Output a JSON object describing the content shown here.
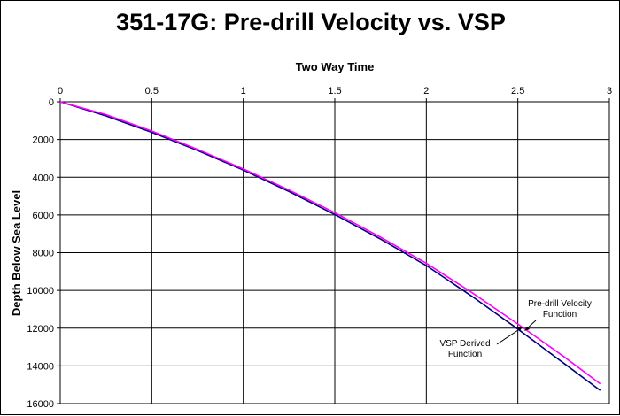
{
  "chart_data": {
    "type": "line",
    "title": "351-17G: Pre-drill Velocity vs. VSP",
    "xlabel": "Two Way Time",
    "ylabel": "Depth Below Sea Level",
    "xlim": [
      0,
      3
    ],
    "ylim": [
      0,
      16000
    ],
    "y_inverted": true,
    "x_axis_position": "top",
    "grid": true,
    "x_ticks": [
      "0",
      "0.5",
      "1",
      "1.5",
      "2",
      "2.5",
      "3"
    ],
    "y_ticks": [
      "0",
      "2000",
      "4000",
      "6000",
      "8000",
      "10000",
      "12000",
      "14000",
      "16000"
    ],
    "series": [
      {
        "name": "VSP Derived Function",
        "color": "#000080",
        "x": [
          0,
          0.25,
          0.5,
          0.75,
          1.0,
          1.25,
          1.5,
          1.75,
          2.0,
          2.25,
          2.5,
          2.75,
          2.95
        ],
        "y": [
          0,
          750,
          1620,
          2580,
          3620,
          4760,
          5980,
          7280,
          8680,
          10320,
          12050,
          13850,
          15300
        ]
      },
      {
        "name": "Pre-drill Velocity Function",
        "color": "#ff00ff",
        "x": [
          0,
          0.25,
          0.5,
          0.75,
          1.0,
          1.25,
          1.5,
          1.75,
          2.0,
          2.25,
          2.5,
          2.75,
          2.95
        ],
        "y": [
          0,
          680,
          1550,
          2520,
          3560,
          4680,
          5880,
          7180,
          8560,
          10120,
          11780,
          13500,
          14950
        ]
      }
    ],
    "annotations": [
      {
        "text": [
          "Pre-drill Velocity",
          "Function"
        ],
        "series": "Pre-drill Velocity Function"
      },
      {
        "text": [
          "VSP Derived",
          "Function"
        ],
        "series": "VSP Derived Function"
      }
    ]
  }
}
